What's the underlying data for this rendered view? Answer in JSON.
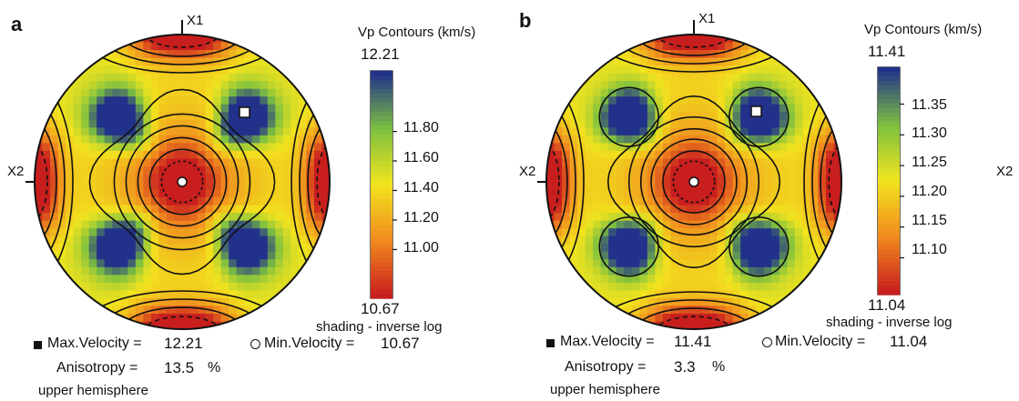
{
  "chart_data": [
    {
      "type": "heatmap",
      "panel_label": "a",
      "axis_labels": {
        "top": "X1",
        "left": "X2",
        "right": ""
      },
      "colorbar": {
        "title": "Vp  Contours (km/s)",
        "max": "12.21",
        "min": "10.67",
        "ticks": [
          "11.80",
          "11.60",
          "11.40",
          "11.20",
          "11.00"
        ],
        "tick_values": [
          11.8,
          11.6,
          11.4,
          11.2,
          11.0
        ],
        "range": [
          10.67,
          12.21
        ],
        "scale": "inverse log"
      },
      "shading_note": "shading - inverse log",
      "max_velocity": {
        "label": "Max.Velocity =",
        "value": "12.21"
      },
      "min_velocity": {
        "label": "Min.Velocity =",
        "value": "10.67"
      },
      "anisotropy": {
        "label": "Anisotropy =",
        "value": "13.5",
        "unit": "%"
      },
      "hemisphere": "upper hemisphere"
    },
    {
      "type": "heatmap",
      "panel_label": "b",
      "axis_labels": {
        "top": "X1",
        "left": "X2",
        "right": "X2"
      },
      "colorbar": {
        "title": "Vp  Contours (km/s)",
        "max": "11.41",
        "min": "11.04",
        "ticks": [
          "11.35",
          "11.30",
          "11.25",
          "11.20",
          "11.15",
          "11.10"
        ],
        "tick_values": [
          11.35,
          11.3,
          11.25,
          11.2,
          11.15,
          11.1
        ],
        "range": [
          11.04,
          11.41
        ],
        "scale": "inverse log"
      },
      "shading_note": "shading - inverse log",
      "max_velocity": {
        "label": "Max.Velocity =",
        "value": "11.41"
      },
      "min_velocity": {
        "label": "Min.Velocity =",
        "value": "11.04"
      },
      "anisotropy": {
        "label": "Anisotropy =",
        "value": "3.3",
        "unit": "%"
      },
      "hemisphere": "upper hemisphere"
    }
  ],
  "colors": {
    "low": "#c81e1e",
    "mid_low": "#f08a1e",
    "mid": "#f2e41e",
    "mid_high": "#7cc040",
    "high": "#22318a"
  }
}
